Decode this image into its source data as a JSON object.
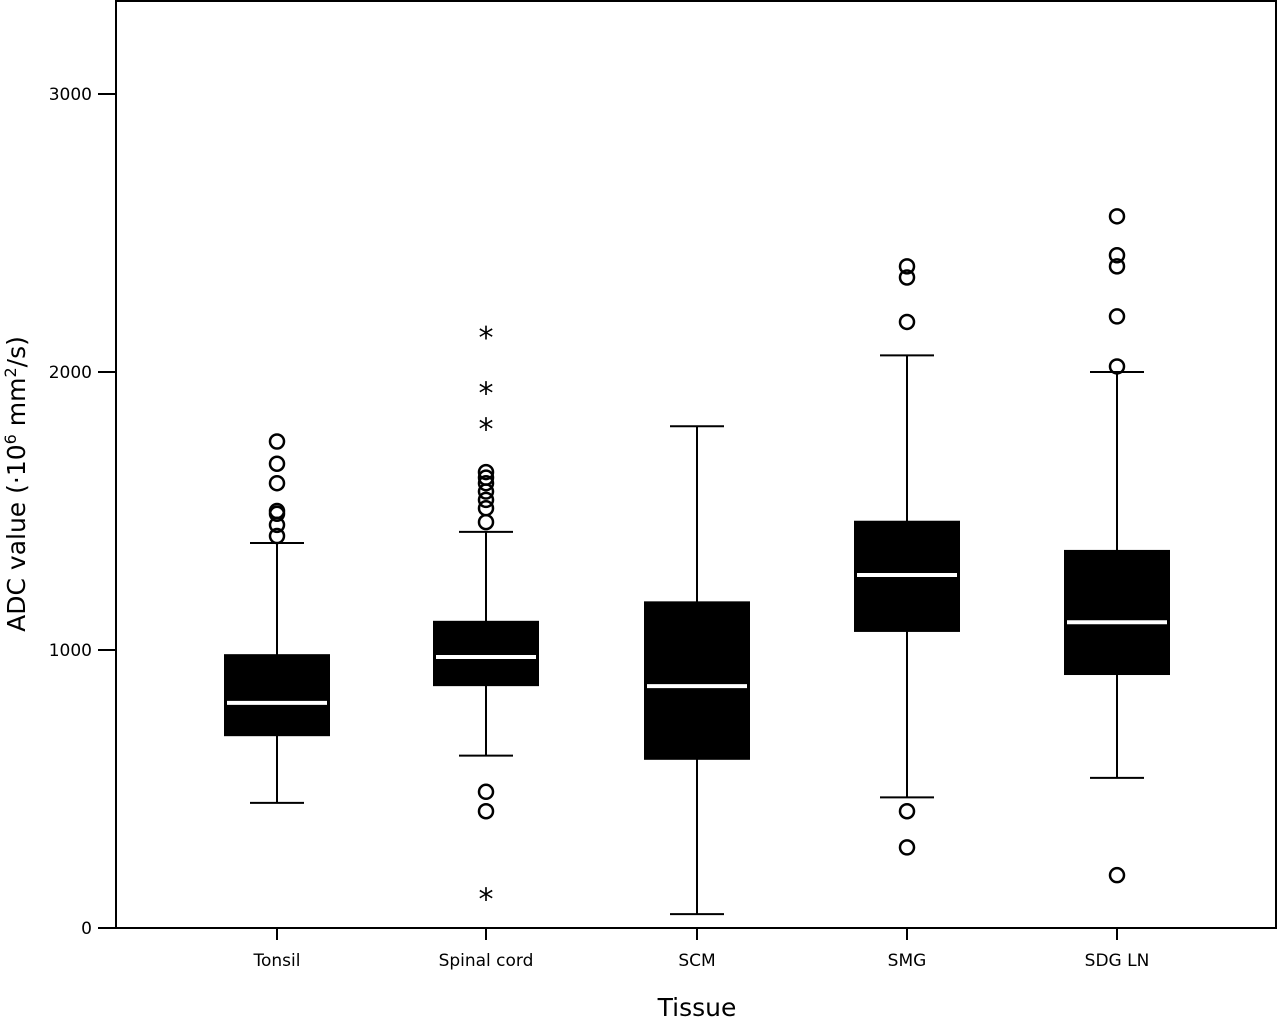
{
  "chart_data": {
    "type": "boxplot",
    "xlabel": "Tissue",
    "ylabel": "ADC value (·10",
    "ylabel_sup1": "6",
    "ylabel_mid": " mm",
    "ylabel_sup2": "2",
    "ylabel_end": "/s)",
    "ylim": [
      0,
      3300
    ],
    "yticks": [
      0,
      1000,
      2000,
      3000
    ],
    "ytick_labels": [
      "0",
      "1000",
      "2000",
      "3000"
    ],
    "categories": [
      "Tonsil",
      "Spinal cord",
      "SCM",
      "SMG",
      "SDG LN"
    ],
    "boxes": [
      {
        "category": "Tonsil",
        "whisker_low": 450,
        "q1": 690,
        "median": 810,
        "q3": 985,
        "whisker_high": 1385,
        "outliers": [
          1410,
          1450,
          1490,
          1500,
          1600,
          1670,
          1750
        ],
        "extremes": []
      },
      {
        "category": "Spinal cord",
        "whisker_low": 620,
        "q1": 870,
        "median": 975,
        "q3": 1105,
        "whisker_high": 1425,
        "outliers": [
          420,
          490,
          1460,
          1510,
          1540,
          1570,
          1600,
          1620,
          1640
        ],
        "extremes": [
          110,
          1800,
          1930,
          2130
        ]
      },
      {
        "category": "SCM",
        "whisker_low": 50,
        "q1": 605,
        "median": 870,
        "q3": 1175,
        "whisker_high": 1805,
        "outliers": [],
        "extremes": []
      },
      {
        "category": "SMG",
        "whisker_low": 470,
        "q1": 1065,
        "median": 1270,
        "q3": 1465,
        "whisker_high": 2060,
        "outliers": [
          290,
          420,
          2180,
          2340,
          2380
        ],
        "extremes": []
      },
      {
        "category": "SDG LN",
        "whisker_low": 540,
        "q1": 910,
        "median": 1100,
        "q3": 1360,
        "whisker_high": 2000,
        "outliers": [
          190,
          2020,
          2200,
          2380,
          2420,
          2560
        ],
        "extremes": []
      }
    ],
    "grid": false,
    "colors": {
      "box": "#000000",
      "median": "#ffffff",
      "axis": "#000000"
    }
  }
}
